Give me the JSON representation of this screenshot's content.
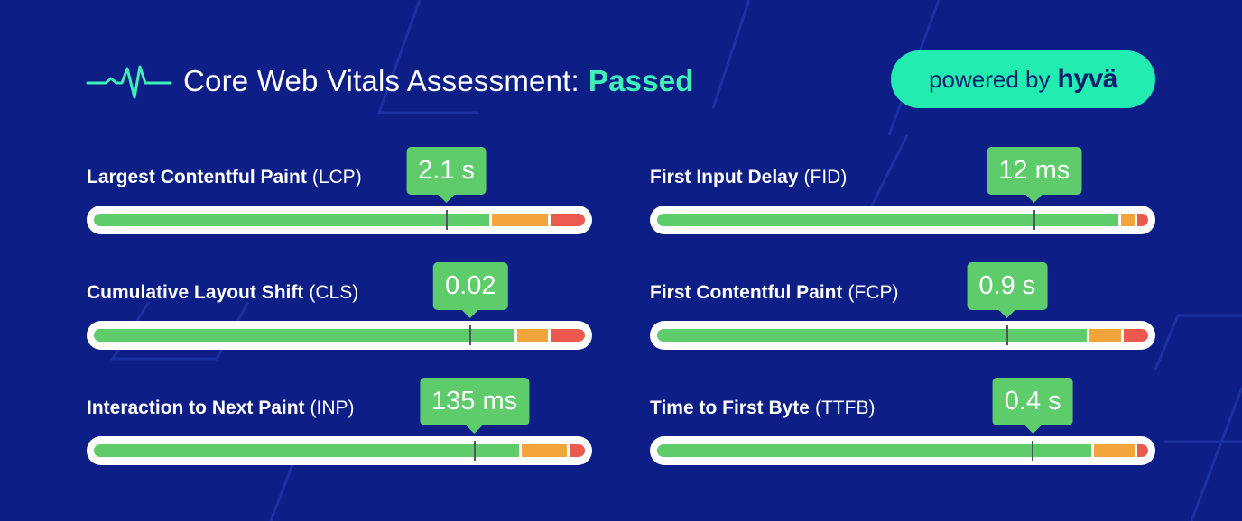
{
  "header": {
    "title": "Core Web Vitals Assessment:",
    "status": "Passed",
    "status_color": "#3ff0b8",
    "icon": "heartbeat-pulse-icon"
  },
  "badge": {
    "prefix": "powered by",
    "brand": "hyvä",
    "color": "#23ecb0"
  },
  "colors": {
    "good": "#5fcc6c",
    "needs_improvement": "#f2a53a",
    "poor": "#ec5a4f",
    "background": "#0d1e86"
  },
  "metrics": [
    {
      "name": "Largest Contentful Paint",
      "abbr": "(LCP)",
      "value": "2.1 s",
      "marker": 0.718,
      "good_end": 0.806,
      "ni_end": 0.925
    },
    {
      "name": "First Input Delay",
      "abbr": "(FID)",
      "value": "12 ms",
      "marker": 0.768,
      "good_end": 0.939,
      "ni_end": 0.973
    },
    {
      "name": "Cumulative Layout Shift",
      "abbr": "(CLS)",
      "value": "0.02",
      "marker": 0.767,
      "good_end": 0.857,
      "ni_end": 0.925
    },
    {
      "name": "First Contentful Paint",
      "abbr": "(FCP)",
      "value": "0.9 s",
      "marker": 0.713,
      "good_end": 0.875,
      "ni_end": 0.944
    },
    {
      "name": "Interaction to Next Paint",
      "abbr": "(INP)",
      "value": "135 ms",
      "marker": 0.775,
      "good_end": 0.866,
      "ni_end": 0.964
    },
    {
      "name": "Time to First Byte",
      "abbr": "(TTFB)",
      "value": "0.4 s",
      "marker": 0.765,
      "good_end": 0.884,
      "ni_end": 0.973
    }
  ]
}
